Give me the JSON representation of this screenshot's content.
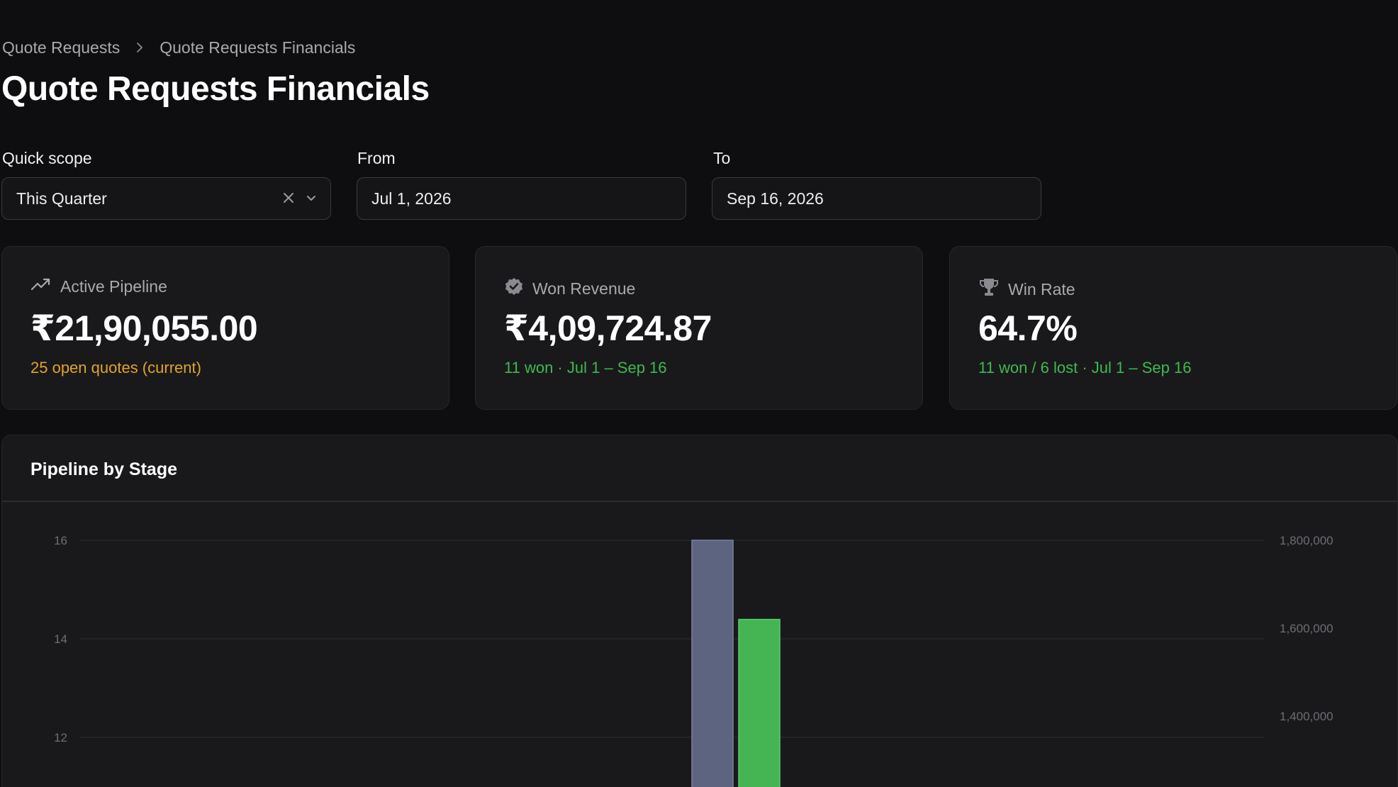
{
  "breadcrumb": {
    "items": [
      "Quote Requests",
      "Quote Requests Financials"
    ],
    "separator": "›"
  },
  "page_title": "Quote Requests Financials",
  "filters": {
    "quick_scope": {
      "label": "Quick scope",
      "value": "This Quarter"
    },
    "from": {
      "label": "From",
      "value": "Jul 1, 2026"
    },
    "to": {
      "label": "To",
      "value": "Sep 16, 2026"
    }
  },
  "cards": [
    {
      "icon": "trending-up-icon",
      "title": "Active Pipeline",
      "value": "₹21,90,055.00",
      "subtitle": "25 open quotes (current)",
      "subtitle_color": "#e0a526"
    },
    {
      "icon": "check-badge-icon",
      "title": "Won Revenue",
      "value": "₹4,09,724.87",
      "subtitle": "11 won · Jul 1 – Sep 16",
      "subtitle_color": "#3fb950"
    },
    {
      "icon": "trophy-icon",
      "title": "Win Rate",
      "value": "64.7%",
      "subtitle": "11 won / 6 lost · Jul 1 – Sep 16",
      "subtitle_color": "#3fb950"
    }
  ],
  "chart_panel": {
    "title": "Pipeline by Stage"
  },
  "chart_data": {
    "type": "bar",
    "title": "Pipeline by Stage",
    "left_axis": {
      "ticks": [
        "16",
        "14",
        "12"
      ],
      "range_visible": [
        11,
        16
      ]
    },
    "right_axis": {
      "ticks": [
        "1,800,000",
        "1,600,000",
        "1,400,000"
      ],
      "range_visible": [
        1300000,
        1800000
      ]
    },
    "grid": true,
    "series": [
      {
        "axis": "left",
        "color": "#5c6480",
        "values": [
          16
        ]
      },
      {
        "axis": "right",
        "color": "#45b553",
        "values": [
          1620000
        ]
      }
    ]
  }
}
